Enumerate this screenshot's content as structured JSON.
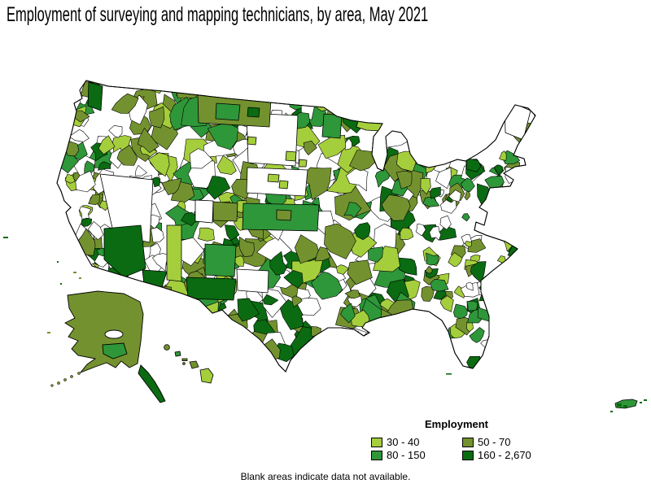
{
  "title": "Employment of surveying and mapping technicians, by area, May 2021",
  "footnote": "Blank areas indicate data not available.",
  "legend": {
    "title": "Employment",
    "items": [
      {
        "label": "30 - 40",
        "color": "#a5ce3c"
      },
      {
        "label": "50 - 70",
        "color": "#73922f"
      },
      {
        "label": "80 - 150",
        "color": "#2e9739"
      },
      {
        "label": "160 - 2,670",
        "color": "#0b6b12"
      }
    ]
  },
  "map": {
    "description": "Choropleth map of the United States (with Alaska, Hawaii and Puerto Rico) shaded by employment of surveying and mapping technicians; blank areas have no data",
    "no_data_color": "#ffffff",
    "border_color": "#000000"
  }
}
